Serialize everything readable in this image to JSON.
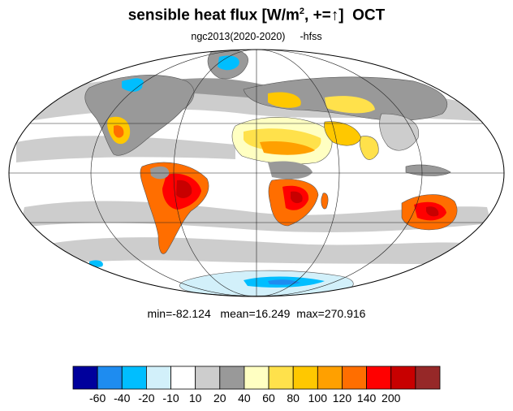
{
  "title": {
    "main": "sensible heat flux [W/m",
    "sup": "2",
    "after": ", +=",
    "arrow": "↑",
    "bracket": "]",
    "month": "OCT"
  },
  "subtitle": {
    "run": "ngc2013(2020-2020)",
    "var": "-hfss"
  },
  "stats": {
    "min_label": "min=",
    "min": "-82.124",
    "mean_label": "mean=",
    "mean": "16.249",
    "max_label": "max=",
    "max": "270.916"
  },
  "colorbar": {
    "colors": [
      "#00009c",
      "#1e8cf0",
      "#00beff",
      "#d2f0fa",
      "#ffffff",
      "#cdcdcd",
      "#999999",
      "#ffffc2",
      "#ffe14b",
      "#ffc800",
      "#ffa000",
      "#ff6e00",
      "#ff0000",
      "#c80000",
      "#962828"
    ],
    "labels": [
      "-60",
      "-40",
      "-20",
      "-10",
      "10",
      "20",
      "40",
      "60",
      "80",
      "100",
      "120",
      "140",
      "200"
    ]
  }
}
